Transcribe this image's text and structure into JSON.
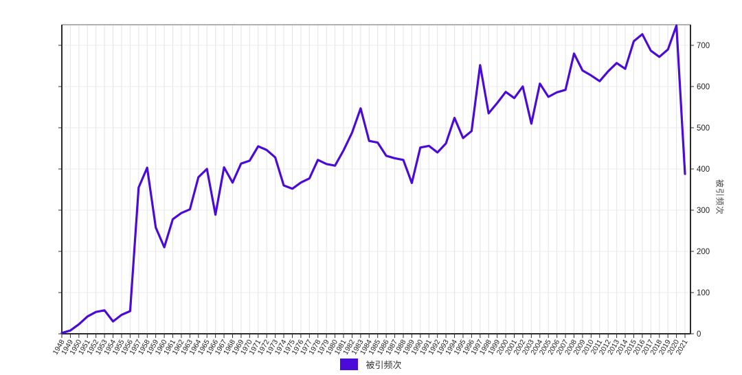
{
  "chart_data": {
    "type": "line",
    "title": "",
    "xlabel": "",
    "ylabel": "被引频次",
    "legend": [
      "被引频次"
    ],
    "legend_position": "bottom-center",
    "grid": true,
    "ylim": [
      0,
      750
    ],
    "yticks": [
      0,
      100,
      200,
      300,
      400,
      500,
      600,
      700
    ],
    "x": [
      "1948",
      "1949",
      "1950",
      "1951",
      "1952",
      "1953",
      "1954",
      "1955",
      "1956",
      "1957",
      "1958",
      "1959",
      "1960",
      "1961",
      "1962",
      "1963",
      "1964",
      "1965",
      "1966",
      "1967",
      "1968",
      "1969",
      "1970",
      "1971",
      "1972",
      "1973",
      "1974",
      "1975",
      "1976",
      "1977",
      "1978",
      "1979",
      "1980",
      "1981",
      "1982",
      "1983",
      "1984",
      "1985",
      "1986",
      "1987",
      "1988",
      "1989",
      "1990",
      "1991",
      "1992",
      "1993",
      "1994",
      "1995",
      "1996",
      "1997",
      "1998",
      "1999",
      "2000",
      "2001",
      "2002",
      "2003",
      "2004",
      "2005",
      "2006",
      "2007",
      "2008",
      "2009",
      "2010",
      "2011",
      "2012",
      "2013",
      "2014",
      "2015",
      "2016",
      "2017",
      "2018",
      "2019",
      "2020",
      "2021"
    ],
    "series": [
      {
        "name": "被引频次",
        "color": "#4A0AD8",
        "values": [
          2,
          8,
          23,
          42,
          53,
          57,
          30,
          46,
          55,
          355,
          403,
          258,
          210,
          278,
          293,
          302,
          380,
          400,
          289,
          404,
          367,
          413,
          420,
          455,
          446,
          428,
          360,
          352,
          367,
          377,
          422,
          412,
          408,
          445,
          488,
          547,
          468,
          464,
          432,
          426,
          422,
          366,
          452,
          456,
          440,
          462,
          524,
          475,
          492,
          652,
          535,
          560,
          587,
          572,
          600,
          510,
          607,
          575,
          586,
          592,
          680,
          639,
          627,
          613,
          637,
          657,
          643,
          710,
          727,
          687,
          672,
          690,
          748,
          388
        ]
      }
    ],
    "colors": {
      "axis": "#2b2b2b",
      "top_border": "#b0b0b0",
      "x_grid": "#e3e3e3",
      "y_grid": "#ebebeb",
      "tick_label": "#222222"
    }
  }
}
